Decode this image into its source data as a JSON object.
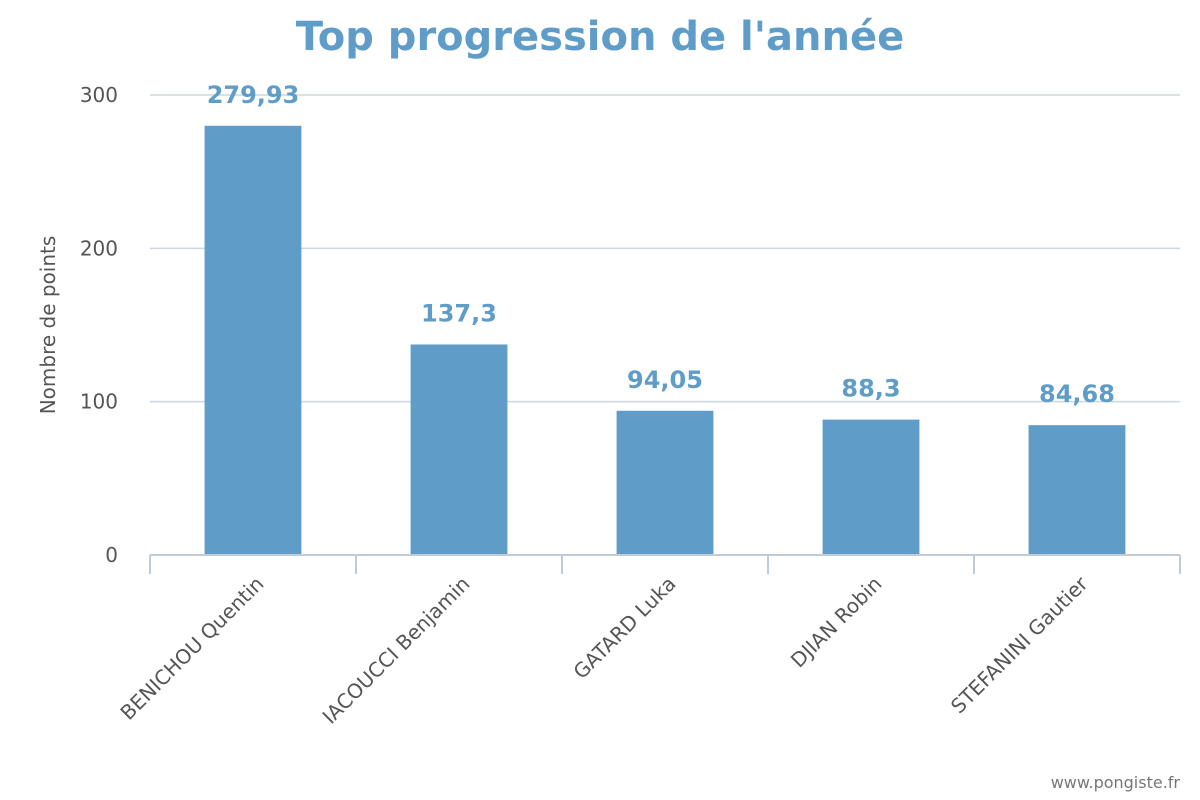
{
  "chart_data": {
    "type": "bar",
    "title": "Top progression de l'année",
    "ylabel": "Nombre de points",
    "xlabel": "",
    "ylim": [
      0,
      300
    ],
    "yticks": [
      0,
      100,
      200,
      300
    ],
    "categories": [
      "BENICHOU Quentin",
      "IACOUCCI Benjamin",
      "GATARD Luka",
      "DJIAN Robin",
      "STEFANINI Gautier"
    ],
    "values": [
      279.93,
      137.3,
      94.05,
      88.3,
      84.68
    ],
    "data_labels": [
      "279,93",
      "137,3",
      "94,05",
      "88,3",
      "84,68"
    ],
    "grid": true,
    "legend": "none",
    "colors": {
      "bar": "#5f9dc8",
      "title": "#5f9dc8",
      "data_label": "#5f9dc8",
      "grid": "#ccd6e0",
      "axis": "#c0cbd8"
    }
  },
  "credit": "www.pongiste.fr"
}
